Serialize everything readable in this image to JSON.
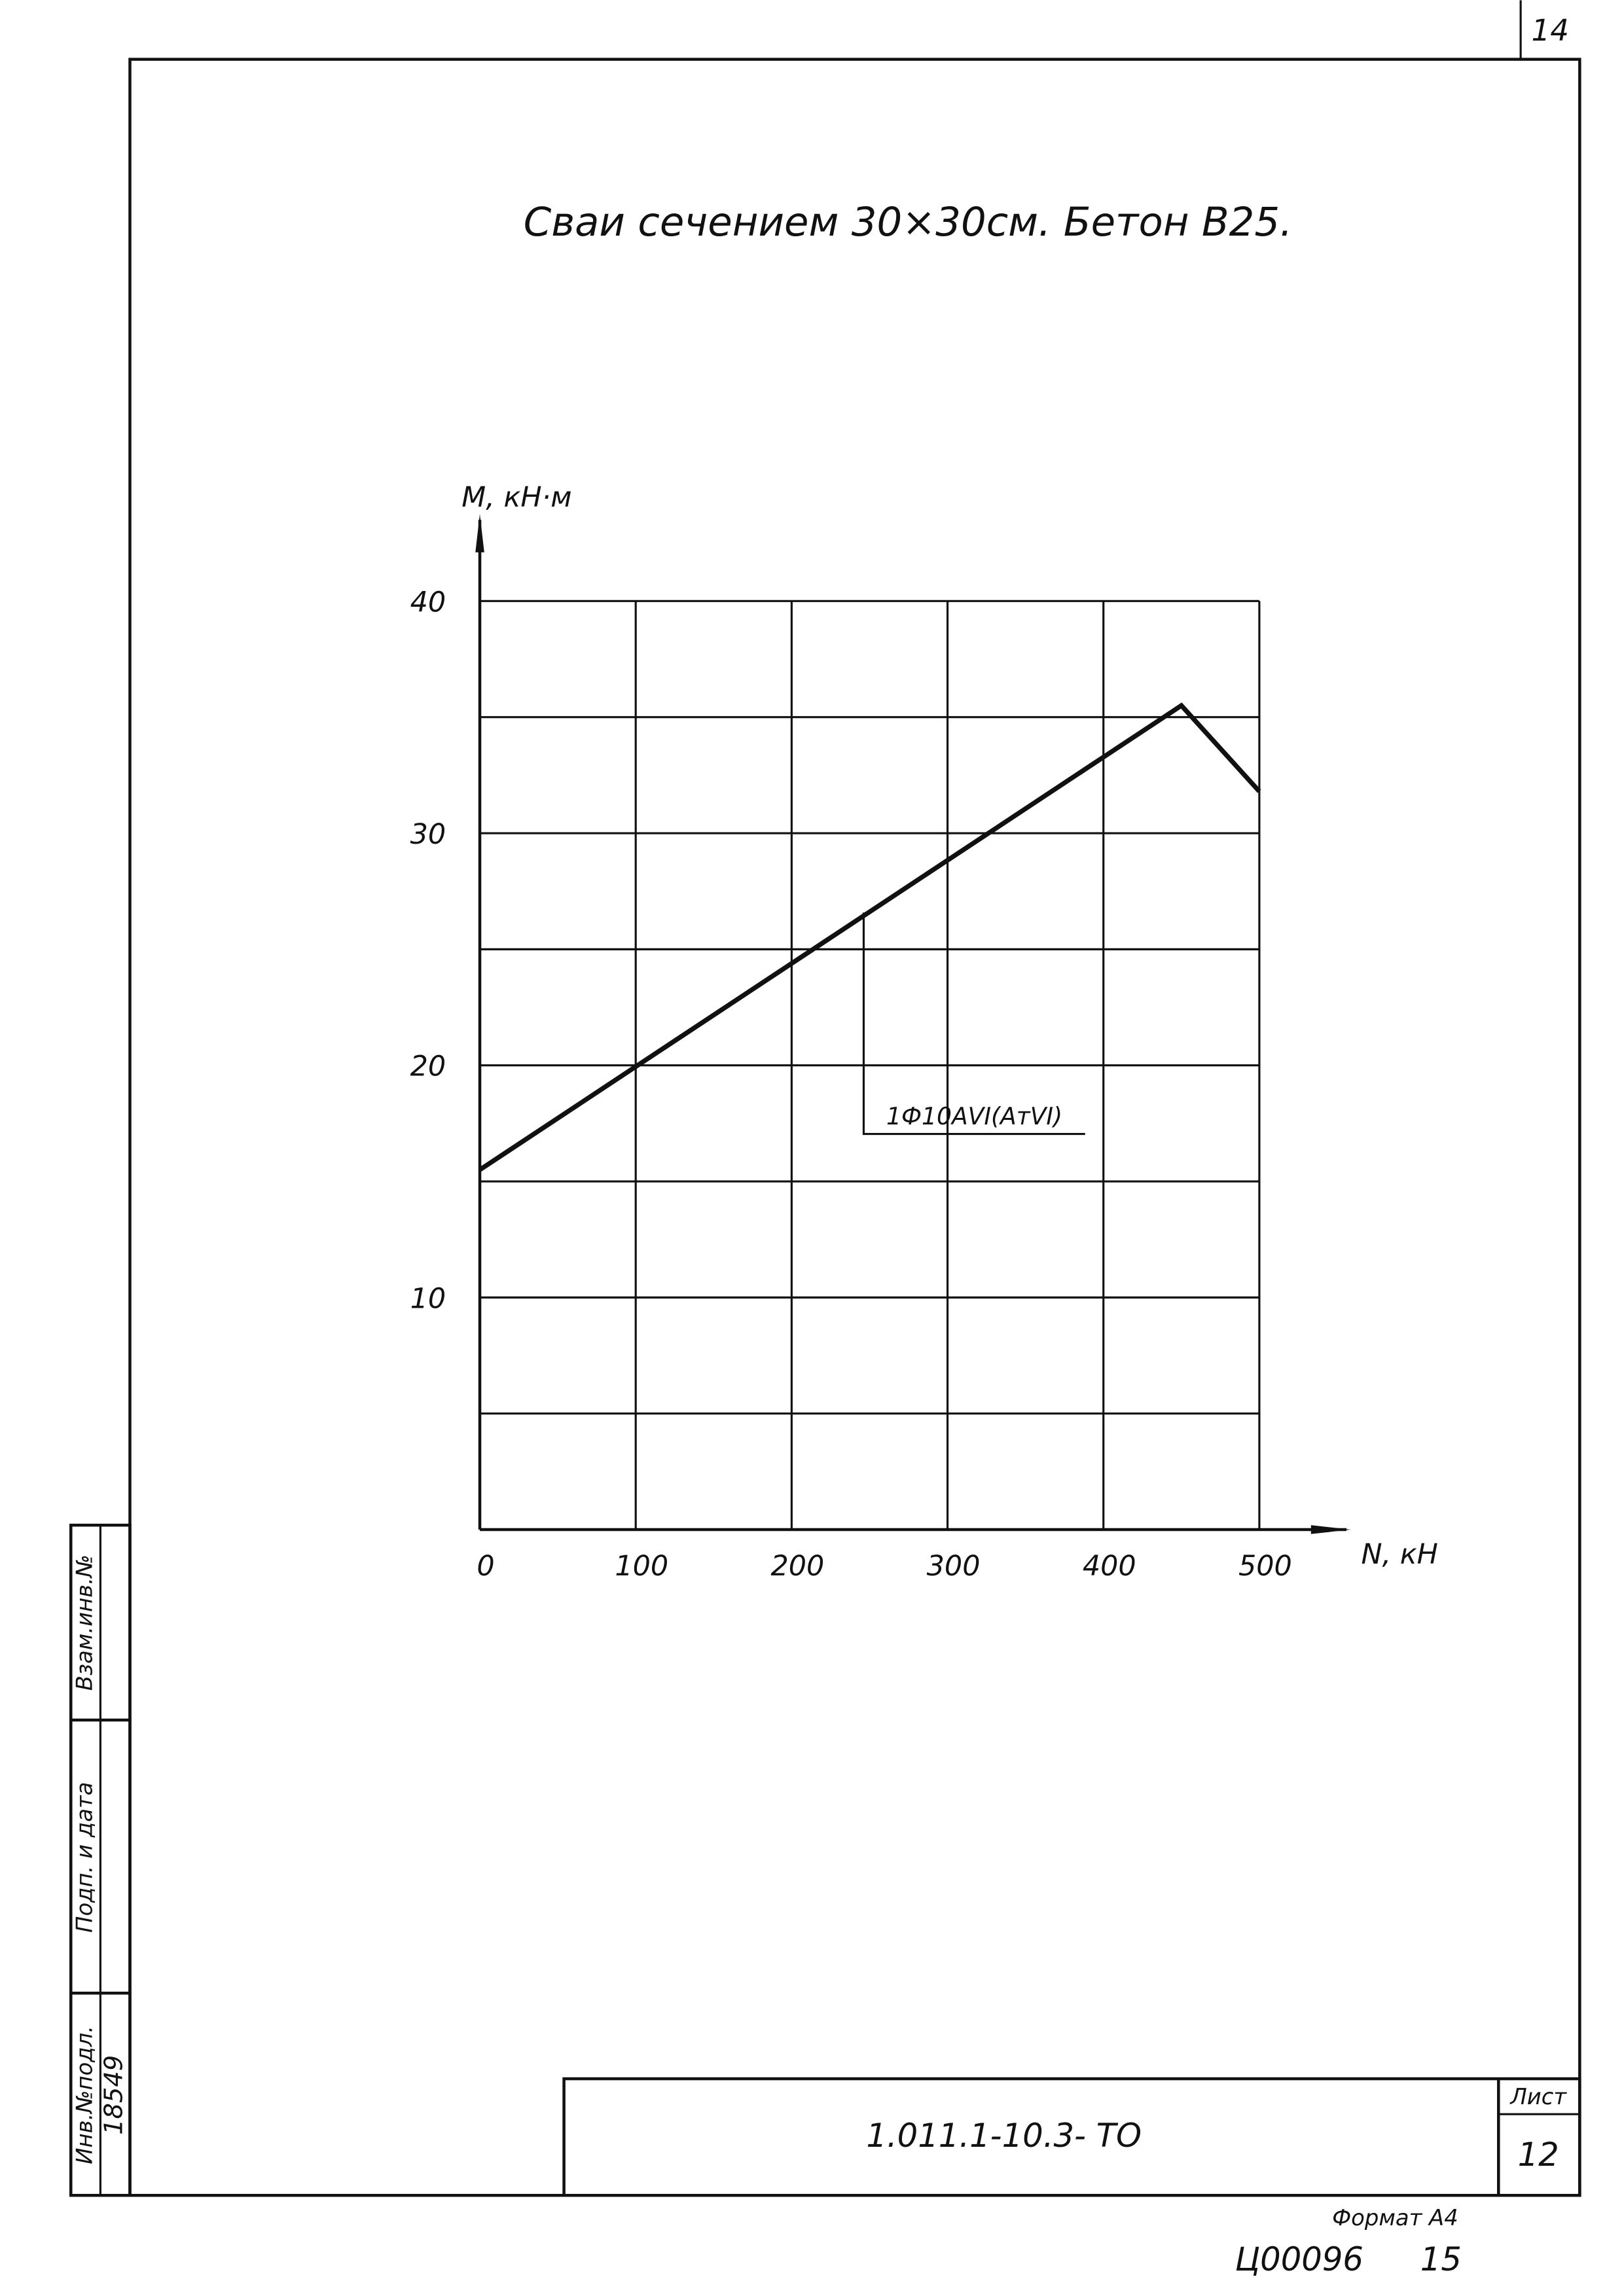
{
  "page_number": "14",
  "chart_data": {
    "type": "line",
    "title": "Сваи сечением 30×30см. Бетон В25.",
    "y_label": "M, кН·м",
    "x_label": "N, кН",
    "x": [
      0,
      450,
      500
    ],
    "series": [
      {
        "name": "1Ф10АVI(АтVI)",
        "color": "#111111",
        "values": [
          15.5,
          35.5,
          31.8
        ]
      }
    ],
    "annotation": "1Ф10АVI(АтVI)",
    "xlim": [
      0,
      500
    ],
    "ylim": [
      0,
      40
    ],
    "xticks": [
      0,
      100,
      200,
      300,
      400,
      500
    ],
    "yticks": [
      10,
      20,
      30,
      40
    ],
    "ygrid": [
      5,
      10,
      15,
      20,
      25,
      30,
      35,
      40
    ],
    "grid": true
  },
  "stamp": {
    "code": "1.011.1-10.3- ТО",
    "sheet_label": "Лист",
    "sheet": "12",
    "format": "Формат А4",
    "archive": "Ц00096",
    "archive_page": "15",
    "inv_label": "Инв.№подл.",
    "inv_value": "18549",
    "sign_label": "Подп. и дата",
    "replace_label": "Взам.инв.№"
  }
}
